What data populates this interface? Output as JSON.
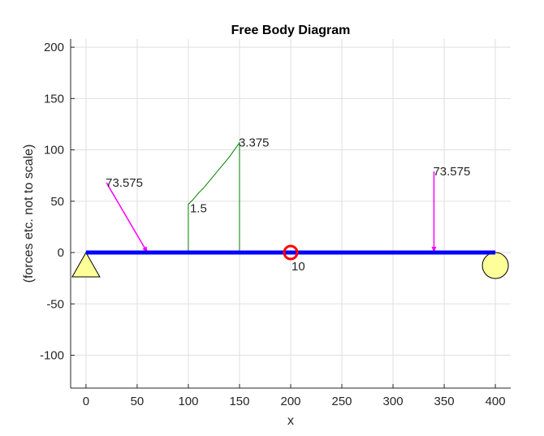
{
  "chart_data": {
    "type": "diagram",
    "title": "Free Body Diagram",
    "xlabel": "x",
    "ylabel": "(forces etc. not to scale)",
    "xlim": [
      -15,
      415
    ],
    "ylim": [
      -132,
      208
    ],
    "grid": true,
    "x_ticks": [
      0,
      50,
      100,
      150,
      200,
      250,
      300,
      350,
      400
    ],
    "y_ticks": [
      200,
      150,
      100,
      50,
      0,
      -50,
      -100
    ],
    "beam": {
      "x_start": 0,
      "x_end": 400,
      "y": 0,
      "color": "#0000ff"
    },
    "supports": [
      {
        "kind": "pin",
        "x": 0,
        "color": "#ffff99"
      },
      {
        "kind": "roller",
        "x": 400,
        "color": "#ffff99"
      }
    ],
    "point_loads": [
      {
        "label": "73.575",
        "x_tail": 20,
        "y_tail": 68,
        "x_head": 60,
        "y_head": 0,
        "color": "#ff00ff"
      },
      {
        "label": "73.575",
        "x_tail": 340,
        "y_tail": 79,
        "x_head": 340,
        "y_head": 0,
        "color": "#ff00ff"
      }
    ],
    "distributed_load": {
      "x": [
        100,
        105,
        110,
        115,
        120,
        125,
        130,
        135,
        140,
        145,
        150
      ],
      "y": [
        47,
        52,
        58,
        63,
        69,
        75,
        81,
        87,
        93,
        100,
        107
      ],
      "start_label": "1.5",
      "end_label": "3.375",
      "color": "#007f00"
    },
    "moment": {
      "label": "10",
      "x": 200,
      "y": 0,
      "color": "#ff0000"
    }
  }
}
